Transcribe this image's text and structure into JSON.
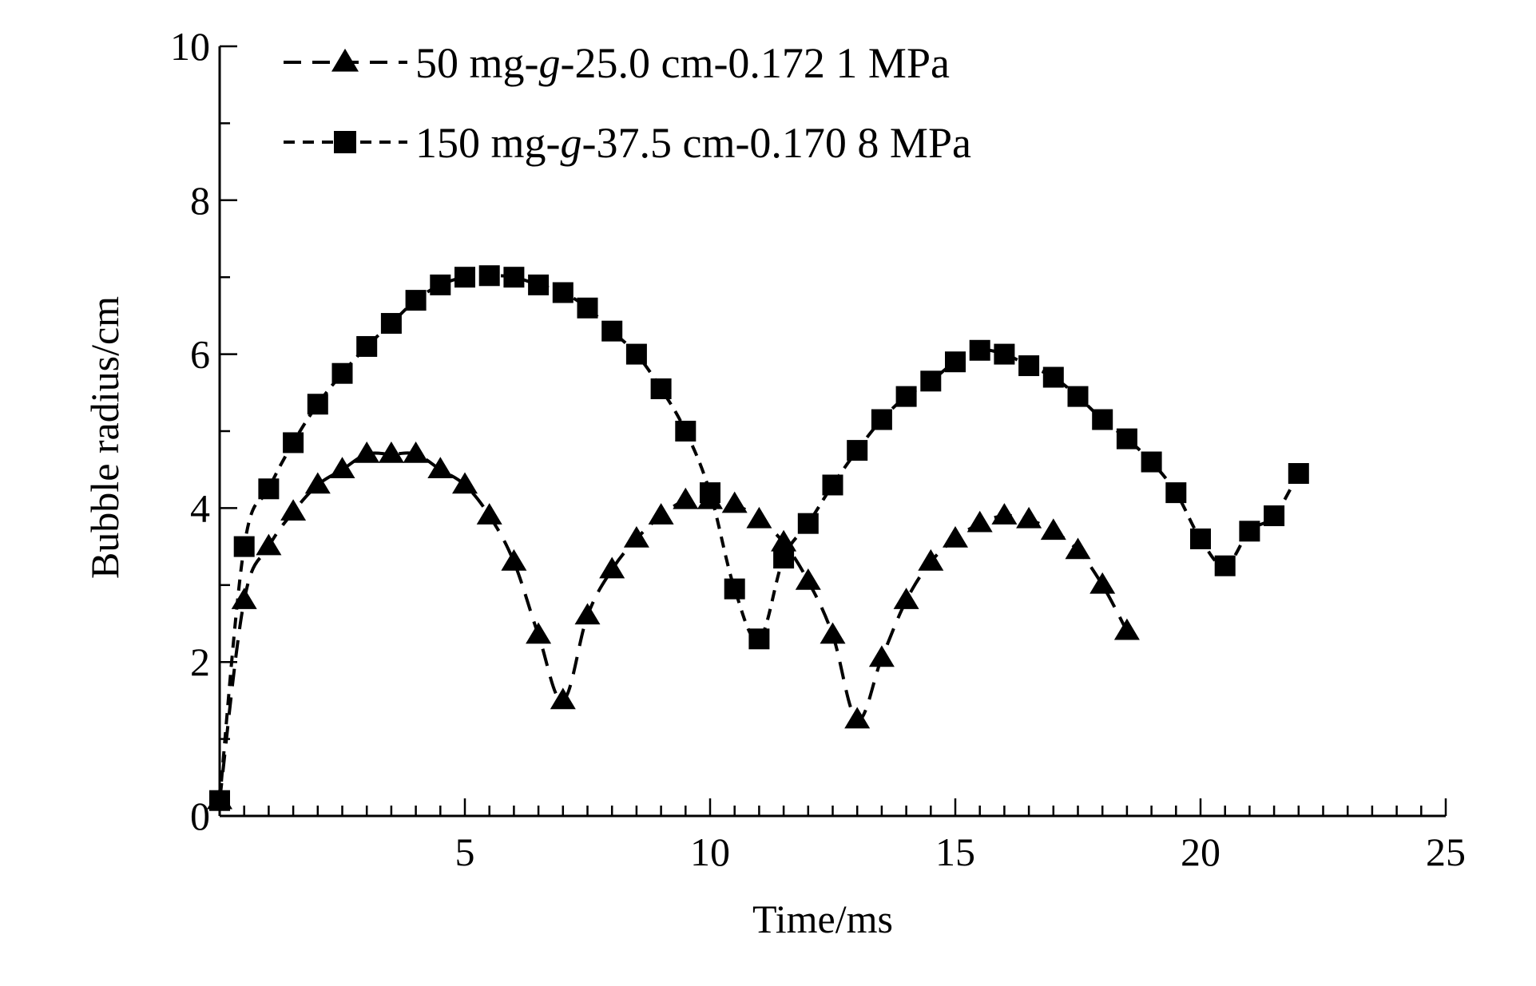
{
  "chart_data": {
    "type": "scatter",
    "xlabel": "Time/ms",
    "ylabel": "Bubble radius/cm",
    "xlim": [
      0,
      25
    ],
    "ylim": [
      0,
      10
    ],
    "x_ticks": [
      "5",
      "10",
      "15",
      "20",
      "25"
    ],
    "y_ticks": [
      "0",
      "2",
      "4",
      "6",
      "8",
      "10"
    ],
    "x_minor_step": 0.5,
    "y_minor_step": 1,
    "grid": false,
    "legend_position": "top-left",
    "series": [
      {
        "name": "50 mg-g-25.0 cm-0.172 1 MPa",
        "marker": "triangle",
        "line_style": "dashed",
        "color": "#000000",
        "x": [
          0.0,
          0.5,
          1.0,
          1.5,
          2.0,
          2.5,
          3.0,
          3.5,
          4.0,
          4.5,
          5.0,
          5.5,
          6.0,
          6.5,
          7.0,
          7.5,
          8.0,
          8.5,
          9.0,
          9.5,
          10.0,
          10.5,
          11.0,
          11.5,
          12.0,
          12.5,
          13.0,
          13.5,
          14.0,
          14.5,
          15.0,
          15.5,
          16.0,
          16.5,
          17.0,
          17.5,
          18.0,
          18.5
        ],
        "y": [
          0.2,
          2.8,
          3.5,
          3.95,
          4.3,
          4.5,
          4.7,
          4.7,
          4.7,
          4.5,
          4.3,
          3.9,
          3.3,
          2.35,
          1.5,
          2.6,
          3.2,
          3.6,
          3.9,
          4.1,
          4.1,
          4.05,
          3.85,
          3.55,
          3.05,
          2.35,
          1.25,
          2.05,
          2.8,
          3.3,
          3.6,
          3.8,
          3.9,
          3.85,
          3.7,
          3.45,
          3.0,
          2.4
        ]
      },
      {
        "name": "150 mg-g-37.5 cm-0.170 8 MPa",
        "marker": "square",
        "line_style": "dashed",
        "color": "#000000",
        "x": [
          0.0,
          0.5,
          1.0,
          1.5,
          2.0,
          2.5,
          3.0,
          3.5,
          4.0,
          4.5,
          5.0,
          5.5,
          6.0,
          6.5,
          7.0,
          7.5,
          8.0,
          8.5,
          9.0,
          9.5,
          10.0,
          10.5,
          11.0,
          11.5,
          12.0,
          12.5,
          13.0,
          13.5,
          14.0,
          14.5,
          15.0,
          15.5,
          16.0,
          16.5,
          17.0,
          17.5,
          18.0,
          18.5,
          19.0,
          19.5,
          20.0,
          20.5,
          21.0,
          21.5,
          22.0
        ],
        "y": [
          0.2,
          3.5,
          4.25,
          4.85,
          5.35,
          5.75,
          6.1,
          6.4,
          6.7,
          6.9,
          7.0,
          7.02,
          7.0,
          6.9,
          6.8,
          6.6,
          6.3,
          6.0,
          5.55,
          5.0,
          4.2,
          2.95,
          2.3,
          3.35,
          3.8,
          4.3,
          4.75,
          5.15,
          5.45,
          5.65,
          5.9,
          6.05,
          6.0,
          5.85,
          5.7,
          5.45,
          5.15,
          4.9,
          4.6,
          4.2,
          3.6,
          3.25,
          3.7,
          3.9,
          4.45
        ]
      }
    ]
  }
}
